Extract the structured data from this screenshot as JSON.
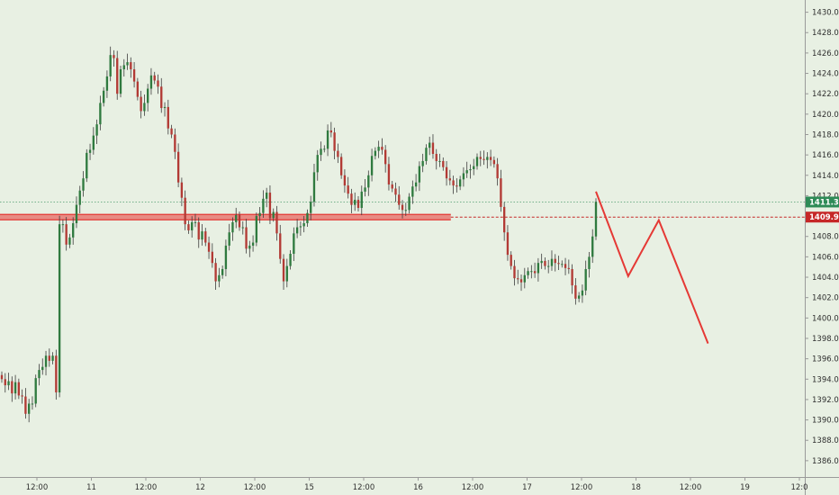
{
  "chart_data": {
    "type": "candlestick",
    "title": "",
    "xlabel": "",
    "ylabel": "",
    "ylim": [
      1384.4,
      1431.2
    ],
    "grid": false,
    "colors": {
      "background": "#e8f0e3",
      "up": "#2f7a3f",
      "down": "#b23a35",
      "wick": "#3d3d3d",
      "zone": "#e53935",
      "projection": "#e53935",
      "axis": "#9a9a9a",
      "price_green": "#2e8b57",
      "price_red": "#c62828"
    },
    "y_ticks": [
      "1386.00",
      "1388.00",
      "1390.00",
      "1392.00",
      "1394.00",
      "1396.00",
      "1398.00",
      "1400.00",
      "1402.00",
      "1404.00",
      "1406.00",
      "1408.00",
      "1410.00",
      "1412.00",
      "1414.00",
      "1416.00",
      "1418.00",
      "1420.00",
      "1422.00",
      "1424.00",
      "1426.00",
      "1428.00",
      "1430.00"
    ],
    "x_ticks": [
      "12:00",
      "11",
      "12:00",
      "12",
      "12:00",
      "15",
      "12:00",
      "16",
      "12:00",
      "17",
      "12:00",
      "18",
      "12:00",
      "19",
      "12:0"
    ],
    "current_price": {
      "label": "1411.38",
      "value": 1411.38
    },
    "support_level": {
      "label": "1409.90",
      "value": 1409.9
    },
    "candles": {
      "closes": [
        1394,
        1393.4,
        1393.8,
        1392.6,
        1393.7,
        1392.4,
        1392.3,
        1390.6,
        1391.6,
        1391.6,
        1394.1,
        1394.9,
        1395.2,
        1396.3,
        1395.8,
        1396.3,
        1392.7,
        1409.2,
        1409.2,
        1407.2,
        1407.9,
        1409.3,
        1411.1,
        1412.5,
        1413.7,
        1416.2,
        1416.5,
        1417.9,
        1419,
        1421.1,
        1422.3,
        1423.7,
        1425.8,
        1425.5,
        1422,
        1424.4,
        1424.8,
        1425.1,
        1424.4,
        1423.2,
        1421.7,
        1420.3,
        1421.1,
        1422.5,
        1423.8,
        1423.3,
        1422.7,
        1420.6,
        1420.7,
        1418.6,
        1418,
        1416.3,
        1413.3,
        1411.8,
        1409.2,
        1408.6,
        1409.4,
        1409.4,
        1407.7,
        1408.5,
        1407.4,
        1406.5,
        1405.4,
        1403.6,
        1404.2,
        1404.8,
        1407.1,
        1408.4,
        1409.4,
        1410.1,
        1408.9,
        1408.9,
        1406.8,
        1407.1,
        1407.4,
        1410,
        1410.3,
        1411.7,
        1412.3,
        1409.8,
        1410.4,
        1408.3,
        1405.8,
        1403.6,
        1405.1,
        1406.3,
        1408.3,
        1408.9,
        1409,
        1409.3,
        1410.3,
        1411.4,
        1414.3,
        1416,
        1416.6,
        1416.6,
        1418.4,
        1418.2,
        1416.4,
        1415.8,
        1414,
        1413,
        1412.2,
        1411.1,
        1411.6,
        1410.8,
        1412.4,
        1412.8,
        1414,
        1415.9,
        1416.4,
        1416.8,
        1416.5,
        1415.1,
        1413.1,
        1412.7,
        1412.1,
        1411.1,
        1410.6,
        1410.6,
        1411.9,
        1412.9,
        1413.3,
        1414.9,
        1415.4,
        1416.7,
        1417.2,
        1416.1,
        1415.4,
        1415.4,
        1414.8,
        1413.7,
        1413.5,
        1413,
        1412.9,
        1413.6,
        1414.2,
        1414.5,
        1414.6,
        1414.9,
        1415.8,
        1415.6,
        1415.5,
        1415.8,
        1415.5,
        1415.1,
        1413.7,
        1410.9,
        1408.4,
        1406.2,
        1405.1,
        1403.9,
        1403.8,
        1403.5,
        1404.2,
        1404.6,
        1404.6,
        1404.4,
        1405.4,
        1405.6,
        1405.1,
        1405.1,
        1405.8,
        1405.4,
        1405.3,
        1405.3,
        1404.9,
        1404.8,
        1403.2,
        1401.9,
        1402.2,
        1402.7,
        1404.8,
        1406,
        1408,
        1411.4
      ]
    },
    "zone_rect": {
      "x_end_fraction": 0.54
    },
    "projection_path": [
      [
        0,
        1412.4
      ],
      [
        9.5,
        1404.1
      ],
      [
        18.5,
        1409.6
      ],
      [
        33,
        1397.5
      ]
    ]
  }
}
